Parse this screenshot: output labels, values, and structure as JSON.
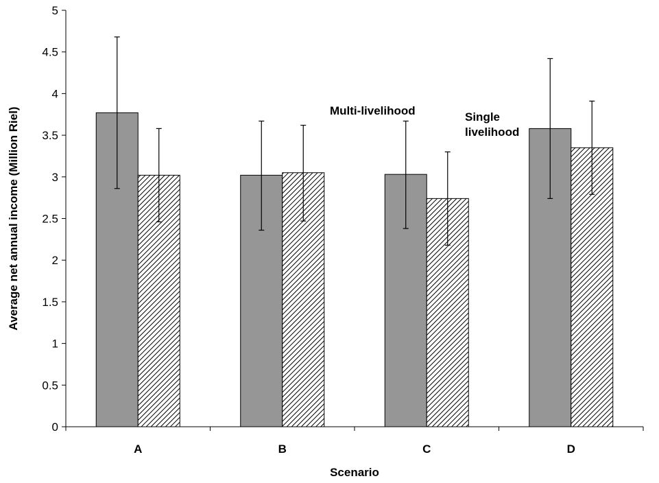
{
  "chart_data": {
    "type": "bar",
    "categories": [
      "A",
      "B",
      "C",
      "D"
    ],
    "xlabel": "Scenario",
    "ylabel": "Average net annual income (Million Riel)",
    "ylim": [
      0,
      5
    ],
    "yticks": [
      "0",
      "0.5",
      "1",
      "1.5",
      "2",
      "2.5",
      "3",
      "3.5",
      "4",
      "4.5",
      "5"
    ],
    "grid": false,
    "series": [
      {
        "name": "Multi-livelihood",
        "values": [
          3.77,
          3.02,
          3.03,
          3.58
        ],
        "error_low": [
          2.86,
          2.36,
          2.38,
          2.74
        ],
        "error_high": [
          4.68,
          3.67,
          3.67,
          4.42
        ],
        "fill": "solid",
        "color": "#969696"
      },
      {
        "name": "Single livelihood",
        "values": [
          3.02,
          3.05,
          2.74,
          3.35
        ],
        "error_low": [
          2.46,
          2.47,
          2.18,
          2.79
        ],
        "error_high": [
          3.58,
          3.62,
          3.3,
          3.91
        ],
        "fill": "diagonal-hatch",
        "color": "#000000"
      }
    ],
    "annotations": [
      {
        "text_lines": [
          "Multi-livelihood"
        ],
        "series": "Multi-livelihood"
      },
      {
        "text_lines": [
          "Single",
          "livelihood"
        ],
        "series": "Single livelihood"
      }
    ]
  }
}
